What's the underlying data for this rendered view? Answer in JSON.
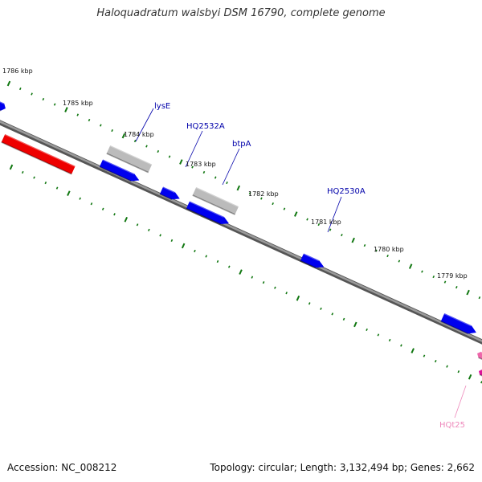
{
  "title": "Haloquadratum walsbyi DSM 16790, complete genome",
  "footer": {
    "accession": "Accession: NC_008212",
    "stats": "Topology: circular; Length: 3,132,494 bp; Genes: 2,662"
  },
  "colors": {
    "backbone": "#808080",
    "forward_cds": "#0000ee",
    "reverse_cds": "#ee0000",
    "pseudogene": "#bbbbbb",
    "trna": "#ee66aa",
    "tick": "#117711",
    "gene_label": "#0000aa",
    "trna_label": "#ee88bb"
  },
  "map": {
    "kbp_labels": [
      "1786 kbp",
      "1785 kbp",
      "1784 kbp",
      "1783 kbp",
      "1782 kbp",
      "1781 kbp",
      "1780 kbp",
      "1779 kbp"
    ],
    "gene_labels": [
      "lysE",
      "HQ2532A",
      "btpA",
      "HQ2530A",
      "HQt25"
    ]
  }
}
